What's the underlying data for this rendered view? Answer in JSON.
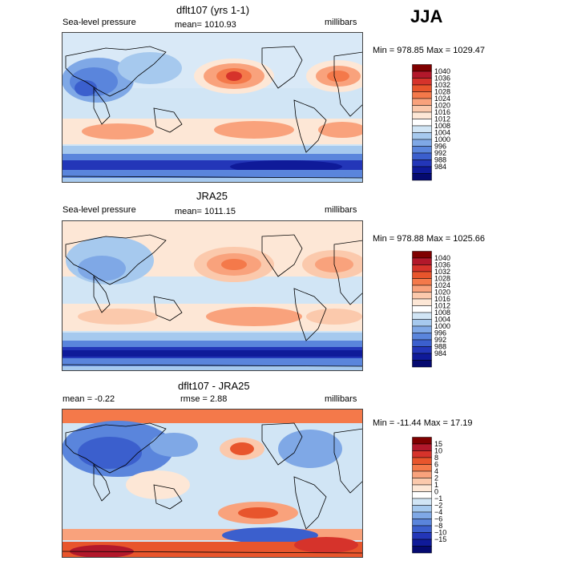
{
  "season": "JJA",
  "colors": {
    "slp": [
      "#7f0000",
      "#b2182b",
      "#d6332b",
      "#e8552c",
      "#f4794a",
      "#f9a27c",
      "#fbc9ac",
      "#fde7d6",
      "#ffffff",
      "#d1e5f5",
      "#a6c9ee",
      "#7fa8e6",
      "#5a85dc",
      "#3b5fcd",
      "#2336b8",
      "#0f1a99",
      "#050a70"
    ],
    "diff": [
      "#7f0000",
      "#b2182b",
      "#d6332b",
      "#e8552c",
      "#f4794a",
      "#f9a27c",
      "#fbc9ac",
      "#fde7d6",
      "#ffffff",
      "#d1e5f5",
      "#a6c9ee",
      "#7fa8e6",
      "#5a85dc",
      "#3b5fcd",
      "#2336b8",
      "#0f1a99",
      "#050a70"
    ]
  },
  "panels": [
    {
      "title": "dflt107 (yrs 1-1)",
      "left_label": "Sea-level pressure",
      "mid_label": "mean= 1010.93",
      "right_label": "millibars",
      "minmax": "Min = 978.85 Max = 1029.47",
      "levels": [
        "1040",
        "1036",
        "1032",
        "1028",
        "1024",
        "1020",
        "1016",
        "1012",
        "1008",
        "1004",
        "1000",
        "996",
        "992",
        "988",
        "984"
      ]
    },
    {
      "title": "JRA25",
      "left_label": "Sea-level pressure",
      "mid_label": "mean= 1011.15",
      "right_label": "millibars",
      "minmax": "Min = 978.88 Max = 1025.66",
      "levels": [
        "1040",
        "1036",
        "1032",
        "1028",
        "1024",
        "1020",
        "1016",
        "1012",
        "1008",
        "1004",
        "1000",
        "996",
        "992",
        "988",
        "984"
      ]
    },
    {
      "title": "dflt107 - JRA25",
      "left_label": "mean =   -0.22",
      "mid_label": "rmse =    2.88",
      "right_label": "millibars",
      "minmax": "Min = -11.44 Max =  17.19",
      "levels": [
        "15",
        "10",
        "8",
        "6",
        "4",
        "2",
        "1",
        "0",
        "−1",
        "−2",
        "−4",
        "−6",
        "−8",
        "−10",
        "−15"
      ]
    }
  ]
}
